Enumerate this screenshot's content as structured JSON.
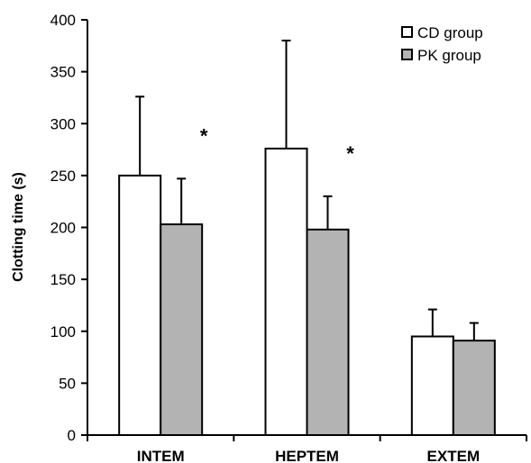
{
  "chart_data": {
    "type": "bar",
    "categories": [
      "INTEM",
      "HEPTEM",
      "EXTEM"
    ],
    "series": [
      {
        "name": "CD group",
        "values": [
          250,
          276,
          95
        ],
        "error": [
          76,
          104,
          26
        ],
        "color": "#ffffff"
      },
      {
        "name": "PK group",
        "values": [
          203,
          198,
          91
        ],
        "error": [
          44,
          32,
          17
        ],
        "color": "#b3b3b3"
      }
    ],
    "significance": [
      {
        "category": "INTEM",
        "series": "PK group",
        "label": "*"
      },
      {
        "category": "HEPTEM",
        "series": "PK group",
        "label": "*"
      }
    ],
    "title": "",
    "xlabel": "",
    "ylabel": "Clotting time (s)",
    "ylim": [
      0,
      400
    ],
    "yticks": [
      0,
      50,
      100,
      150,
      200,
      250,
      300,
      350,
      400
    ],
    "grid": false,
    "legend_position": "top-right"
  }
}
